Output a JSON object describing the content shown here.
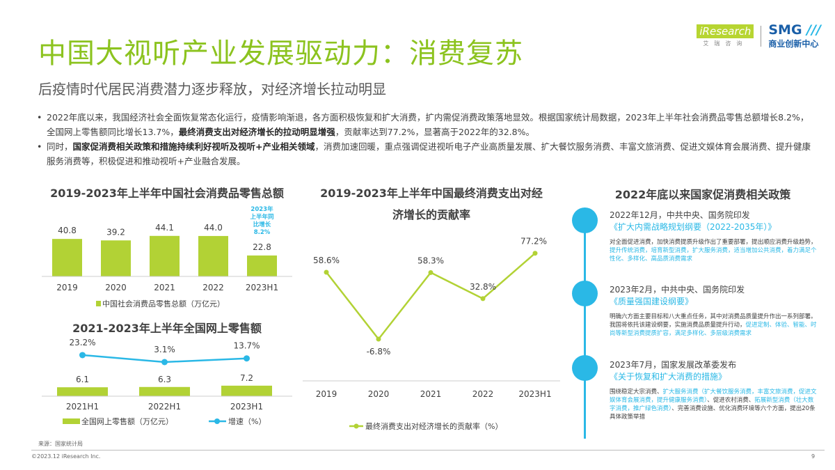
{
  "header": {
    "title": "中国大视听产业发展驱动力：消费复苏",
    "subtitle": "后疫情时代居民消费潜力逐步释放，对经济增长拉动明显",
    "logo_left": "iResearch",
    "logo_left_sub": "艾瑞咨询",
    "logo_right": "SMG",
    "logo_right_sub": "商业创新中心"
  },
  "bullets": [
    {
      "pre": "2022年底以来，我国经济社会全面恢复常态化运行，疫情影响渐退，各方面积极恢复和扩大消费，扩内需促消费政策落地显效。根据国家统计局数据，2023年上半年社会消费品零售总额增长8.2%，全国网上零售额同比增长13.7%，",
      "bold": "最终消费支出对经济增长的拉动明显增强",
      "post": "，贡献率达到77.2%，显著高于2022年的32.8%。"
    },
    {
      "pre": "同时，",
      "bold": "国家促消费相关政策和措施持续利好视听及视听+产业相关领域",
      "post": "，消费加速回暖，重点强调促进视听电子产业高质量发展、扩大餐饮服务消费、丰富文旅消费、促进文娱体育会展消费、提升健康服务消费等，积极促进和推动视听+产业融合发展。"
    }
  ],
  "colors": {
    "green": "#8cc31f",
    "bar": "#b2d235",
    "blue": "#2ab8e6"
  },
  "chart_data": [
    {
      "type": "bar",
      "title": "2019-2023年上半年中国社会消费品零售总额",
      "categories": [
        "2019",
        "2020",
        "2021",
        "2022",
        "2023H1"
      ],
      "series": [
        {
          "name": "中国社会消费品零售总额（万亿元）",
          "values": [
            40.8,
            39.2,
            44.1,
            44.0,
            22.8
          ]
        }
      ],
      "annotation": "2023年上半年同比增长8.2%",
      "legend": "bottom"
    },
    {
      "type": "bar+line",
      "title": "2021-2023年上半年全国网上零售额",
      "categories": [
        "2021H1",
        "2022H1",
        "2023H1"
      ],
      "series": [
        {
          "name": "全国网上零售额（万亿元）",
          "type": "bar",
          "values": [
            6.1,
            6.3,
            7.2
          ]
        },
        {
          "name": "增速（%）",
          "type": "line",
          "values": [
            23.2,
            3.1,
            13.7
          ],
          "labels": [
            "23.2%",
            "3.1%",
            "13.7%"
          ]
        }
      ],
      "legend": "bottom"
    },
    {
      "type": "line",
      "title": "2019-2023年上半年中国最终消费支出对经济增长的贡献率",
      "categories": [
        "2019",
        "2020",
        "2021",
        "2022",
        "2023H1"
      ],
      "series": [
        {
          "name": "最终消费支出对经济增长的贡献率（%）",
          "values": [
            58.6,
            -6.8,
            58.3,
            32.8,
            77.2
          ],
          "labels": [
            "58.6%",
            "-6.8%",
            "58.3%",
            "32.8%",
            "77.2%"
          ]
        }
      ],
      "legend": "bottom"
    }
  ],
  "policy": {
    "title": "2022年底以来国家促消费相关政策",
    "items": [
      {
        "head": "2022年12月，中共中央、国务院印发",
        "doc": "《扩大内需战略规划纲要（2022-2035年）》",
        "body": "对全面促进消费，加快消费提质升级作出了重要部署，提出顺应消费升级趋势，",
        "hl": "提升传统消费，培育新型消费，扩大服务消费，适当增加公共消费，着力满足个性化、多样化、高品质消费需求",
        "tail": ""
      },
      {
        "head": "2023年2月，中共中央、国务院印发",
        "doc": "《质量强国建设纲要》",
        "body": "明确六方面主要目标和八大重点任务，其中对消费品质量提升作出一系列部署。我国将依托该建设纲要，实施消费品质量提升行动，",
        "hl": "促进定制、体验、智能、时尚等新型消费提质扩容，满足多样化、多层级消费需求",
        "tail": ""
      },
      {
        "head": "2023年7月，国家发展改革委发布",
        "doc": "《关于恢复和扩大消费的措施》",
        "body": "围绕稳定大宗消费、",
        "hl": "扩大服务消费（扩大餐饮服务消费，丰富文旅消费，促进文娱体育会展消费，提升健康服务消费）",
        "mid": "、促进农村消费、",
        "hl2": "拓展新型消费（壮大数字消费，推广绿色消费）",
        "tail": "、完善消费设施、优化消费环境等六个方面，提出20条具体政策举措"
      }
    ]
  },
  "footer": {
    "source": "来源：国家统计局",
    "copyright": "©2023.12 iResearch Inc.",
    "page": "9"
  }
}
